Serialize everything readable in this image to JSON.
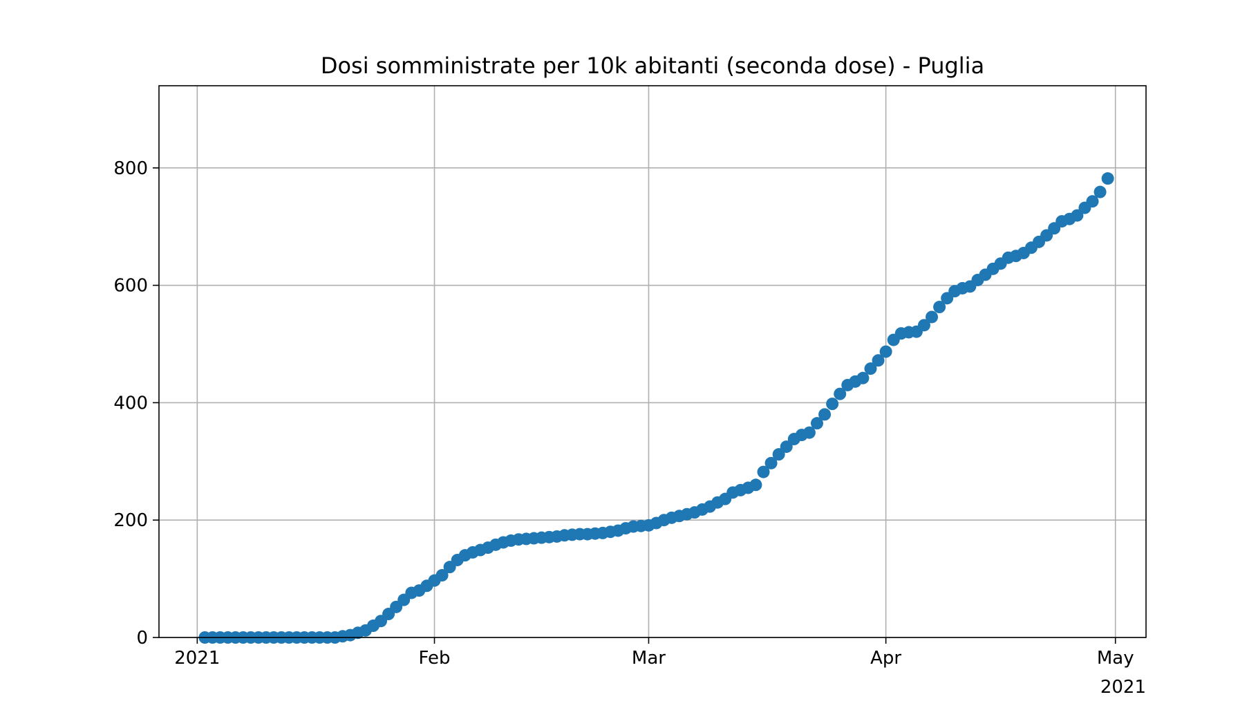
{
  "chart_data": {
    "type": "scatter",
    "title": "Dosi somministrate per 10k abitanti (seconda dose) - Puglia",
    "xlabel": "",
    "ylabel": "",
    "x_offset_label": "2021",
    "xlim": [
      "2020-12-27",
      "2021-05-05"
    ],
    "ylim": [
      0,
      940
    ],
    "grid": true,
    "marker_color": "#1f77b4",
    "x_ticks": [
      {
        "date": "2021-01-01",
        "label": "2021"
      },
      {
        "date": "2021-02-01",
        "label": "Feb"
      },
      {
        "date": "2021-03-01",
        "label": "Mar"
      },
      {
        "date": "2021-04-01",
        "label": "Apr"
      },
      {
        "date": "2021-05-01",
        "label": "May"
      }
    ],
    "y_ticks": [
      {
        "value": 0,
        "label": "0"
      },
      {
        "value": 200,
        "label": "200"
      },
      {
        "value": 400,
        "label": "400"
      },
      {
        "value": 600,
        "label": "600"
      },
      {
        "value": 800,
        "label": "800"
      }
    ],
    "series": [
      {
        "points": [
          [
            "2021-01-02",
            0
          ],
          [
            "2021-01-03",
            0
          ],
          [
            "2021-01-04",
            0
          ],
          [
            "2021-01-05",
            0
          ],
          [
            "2021-01-06",
            0
          ],
          [
            "2021-01-07",
            0
          ],
          [
            "2021-01-08",
            0
          ],
          [
            "2021-01-09",
            0
          ],
          [
            "2021-01-10",
            0
          ],
          [
            "2021-01-11",
            0
          ],
          [
            "2021-01-12",
            0
          ],
          [
            "2021-01-13",
            0
          ],
          [
            "2021-01-14",
            0
          ],
          [
            "2021-01-15",
            0
          ],
          [
            "2021-01-16",
            0
          ],
          [
            "2021-01-17",
            0
          ],
          [
            "2021-01-18",
            0
          ],
          [
            "2021-01-19",
            0
          ],
          [
            "2021-01-20",
            2
          ],
          [
            "2021-01-21",
            4
          ],
          [
            "2021-01-22",
            8
          ],
          [
            "2021-01-23",
            12
          ],
          [
            "2021-01-24",
            20
          ],
          [
            "2021-01-25",
            28
          ],
          [
            "2021-01-26",
            40
          ],
          [
            "2021-01-27",
            52
          ],
          [
            "2021-01-28",
            64
          ],
          [
            "2021-01-29",
            76
          ],
          [
            "2021-01-30",
            80
          ],
          [
            "2021-01-31",
            88
          ],
          [
            "2021-02-01",
            97
          ],
          [
            "2021-02-02",
            106
          ],
          [
            "2021-02-03",
            120
          ],
          [
            "2021-02-04",
            132
          ],
          [
            "2021-02-05",
            140
          ],
          [
            "2021-02-06",
            145
          ],
          [
            "2021-02-07",
            149
          ],
          [
            "2021-02-08",
            153
          ],
          [
            "2021-02-09",
            158
          ],
          [
            "2021-02-10",
            162
          ],
          [
            "2021-02-11",
            165
          ],
          [
            "2021-02-12",
            167
          ],
          [
            "2021-02-13",
            168
          ],
          [
            "2021-02-14",
            169
          ],
          [
            "2021-02-15",
            170
          ],
          [
            "2021-02-16",
            171
          ],
          [
            "2021-02-17",
            172
          ],
          [
            "2021-02-18",
            174
          ],
          [
            "2021-02-19",
            175
          ],
          [
            "2021-02-20",
            176
          ],
          [
            "2021-02-21",
            176
          ],
          [
            "2021-02-22",
            177
          ],
          [
            "2021-02-23",
            178
          ],
          [
            "2021-02-24",
            180
          ],
          [
            "2021-02-25",
            182
          ],
          [
            "2021-02-26",
            186
          ],
          [
            "2021-02-27",
            189
          ],
          [
            "2021-02-28",
            190
          ],
          [
            "2021-03-01",
            191
          ],
          [
            "2021-03-02",
            195
          ],
          [
            "2021-03-03",
            200
          ],
          [
            "2021-03-04",
            204
          ],
          [
            "2021-03-05",
            207
          ],
          [
            "2021-03-06",
            210
          ],
          [
            "2021-03-07",
            213
          ],
          [
            "2021-03-08",
            218
          ],
          [
            "2021-03-09",
            223
          ],
          [
            "2021-03-10",
            230
          ],
          [
            "2021-03-11",
            236
          ],
          [
            "2021-03-12",
            247
          ],
          [
            "2021-03-13",
            251
          ],
          [
            "2021-03-14",
            255
          ],
          [
            "2021-03-15",
            260
          ],
          [
            "2021-03-16",
            282
          ],
          [
            "2021-03-17",
            297
          ],
          [
            "2021-03-18",
            312
          ],
          [
            "2021-03-19",
            325
          ],
          [
            "2021-03-20",
            338
          ],
          [
            "2021-03-21",
            345
          ],
          [
            "2021-03-22",
            349
          ],
          [
            "2021-03-23",
            365
          ],
          [
            "2021-03-24",
            380
          ],
          [
            "2021-03-25",
            398
          ],
          [
            "2021-03-26",
            415
          ],
          [
            "2021-03-27",
            430
          ],
          [
            "2021-03-28",
            436
          ],
          [
            "2021-03-29",
            442
          ],
          [
            "2021-03-30",
            458
          ],
          [
            "2021-03-31",
            472
          ],
          [
            "2021-04-01",
            487
          ],
          [
            "2021-04-02",
            507
          ],
          [
            "2021-04-03",
            518
          ],
          [
            "2021-04-04",
            520
          ],
          [
            "2021-04-05",
            521
          ],
          [
            "2021-04-06",
            532
          ],
          [
            "2021-04-07",
            546
          ],
          [
            "2021-04-08",
            563
          ],
          [
            "2021-04-09",
            578
          ],
          [
            "2021-04-10",
            590
          ],
          [
            "2021-04-11",
            595
          ],
          [
            "2021-04-12",
            598
          ],
          [
            "2021-04-13",
            609
          ],
          [
            "2021-04-14",
            618
          ],
          [
            "2021-04-15",
            628
          ],
          [
            "2021-04-16",
            637
          ],
          [
            "2021-04-17",
            647
          ],
          [
            "2021-04-18",
            650
          ],
          [
            "2021-04-19",
            655
          ],
          [
            "2021-04-20",
            664
          ],
          [
            "2021-04-21",
            674
          ],
          [
            "2021-04-22",
            685
          ],
          [
            "2021-04-23",
            697
          ],
          [
            "2021-04-24",
            709
          ],
          [
            "2021-04-25",
            713
          ],
          [
            "2021-04-26",
            719
          ],
          [
            "2021-04-27",
            732
          ],
          [
            "2021-04-28",
            743
          ],
          [
            "2021-04-29",
            759
          ],
          [
            "2021-04-30",
            782
          ]
        ]
      }
    ]
  }
}
